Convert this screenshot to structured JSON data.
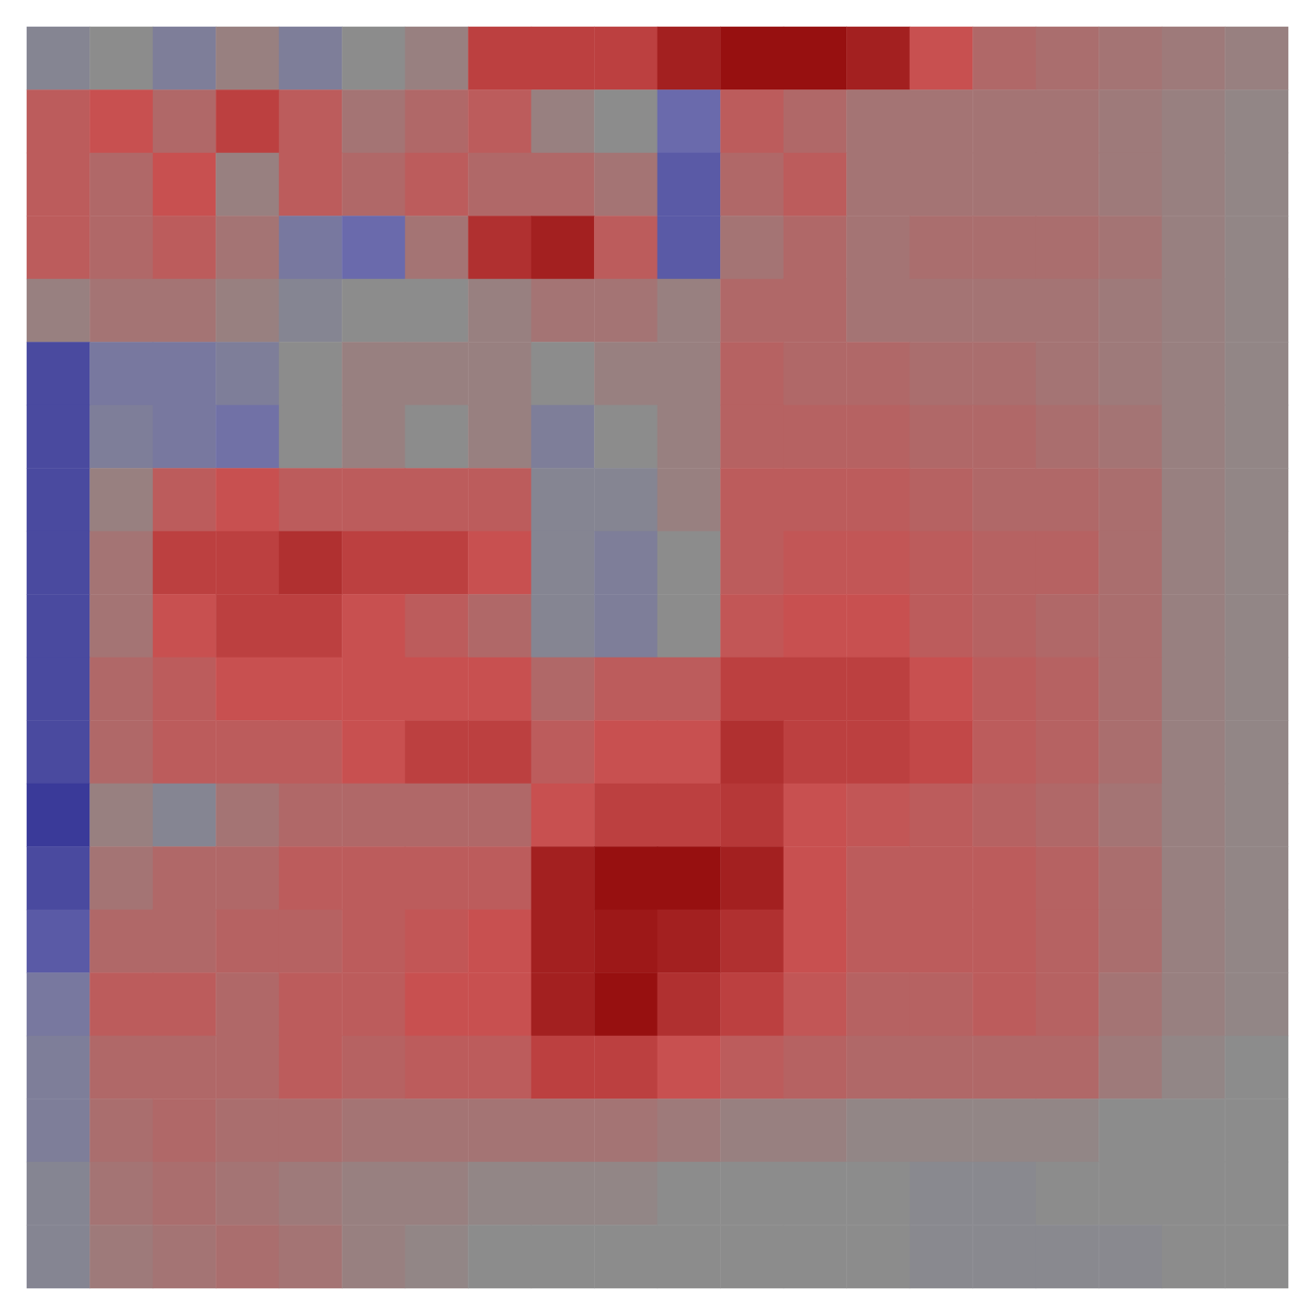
{
  "chart_data": {
    "type": "heatmap",
    "tick_labels": false,
    "grid": false,
    "zlim": [
      -1,
      1
    ],
    "values": [
      [
        -0.1,
        0,
        -0.2,
        0.1,
        -0.2,
        0,
        0.1,
        0.6,
        0.6,
        0.6,
        0.8,
        0.9,
        0.9,
        0.8,
        0.5,
        0.3,
        0.25,
        0.2,
        0.15,
        0.1
      ],
      [
        0.4,
        0.5,
        0.3,
        0.6,
        0.4,
        0.2,
        0.3,
        0.4,
        0.1,
        0,
        -0.5,
        0.4,
        0.3,
        0.2,
        0.2,
        0.2,
        0.2,
        0.15,
        0.1,
        0.05
      ],
      [
        0.4,
        0.3,
        0.5,
        0.1,
        0.4,
        0.3,
        0.4,
        0.3,
        0.3,
        0.2,
        -0.6,
        0.3,
        0.4,
        0.2,
        0.2,
        0.2,
        0.2,
        0.15,
        0.1,
        0.05
      ],
      [
        0.4,
        0.3,
        0.4,
        0.2,
        -0.3,
        -0.5,
        0.2,
        0.7,
        0.8,
        0.4,
        -0.6,
        0.2,
        0.3,
        0.2,
        0.25,
        0.25,
        0.25,
        0.2,
        0.1,
        0.05
      ],
      [
        0.1,
        0.2,
        0.2,
        0.1,
        -0.1,
        0,
        0,
        0.1,
        0.2,
        0.2,
        0.1,
        0.3,
        0.3,
        0.2,
        0.2,
        0.2,
        0.2,
        0.15,
        0.1,
        0.05
      ],
      [
        -0.7,
        -0.3,
        -0.3,
        -0.2,
        0,
        0.1,
        0.1,
        0.1,
        0,
        0.1,
        0.1,
        0.35,
        0.3,
        0.3,
        0.25,
        0.25,
        0.2,
        0.15,
        0.1,
        0.05
      ],
      [
        -0.7,
        -0.2,
        -0.3,
        -0.4,
        0,
        0.1,
        0,
        0.1,
        -0.2,
        0,
        0.1,
        0.35,
        0.35,
        0.35,
        0.3,
        0.3,
        0.25,
        0.2,
        0.1,
        0.05
      ],
      [
        -0.7,
        0.1,
        0.4,
        0.5,
        0.4,
        0.4,
        0.4,
        0.4,
        -0.1,
        -0.1,
        0.1,
        0.4,
        0.4,
        0.4,
        0.35,
        0.3,
        0.3,
        0.25,
        0.1,
        0.05
      ],
      [
        -0.7,
        0.2,
        0.6,
        0.6,
        0.7,
        0.6,
        0.6,
        0.5,
        -0.1,
        -0.2,
        0,
        0.4,
        0.45,
        0.45,
        0.4,
        0.35,
        0.35,
        0.25,
        0.1,
        0.05
      ],
      [
        -0.7,
        0.2,
        0.5,
        0.6,
        0.6,
        0.5,
        0.4,
        0.3,
        -0.1,
        -0.2,
        0,
        0.45,
        0.5,
        0.5,
        0.4,
        0.35,
        0.3,
        0.25,
        0.1,
        0.05
      ],
      [
        -0.7,
        0.3,
        0.4,
        0.5,
        0.5,
        0.5,
        0.5,
        0.5,
        0.3,
        0.4,
        0.4,
        0.6,
        0.6,
        0.6,
        0.5,
        0.4,
        0.35,
        0.25,
        0.1,
        0.05
      ],
      [
        -0.7,
        0.3,
        0.4,
        0.4,
        0.4,
        0.5,
        0.6,
        0.6,
        0.4,
        0.5,
        0.5,
        0.7,
        0.6,
        0.6,
        0.55,
        0.4,
        0.35,
        0.25,
        0.1,
        0.05
      ],
      [
        -0.8,
        0.1,
        -0.1,
        0.2,
        0.3,
        0.3,
        0.3,
        0.3,
        0.5,
        0.6,
        0.6,
        0.65,
        0.5,
        0.45,
        0.4,
        0.35,
        0.3,
        0.2,
        0.1,
        0.05
      ],
      [
        -0.7,
        0.2,
        0.3,
        0.3,
        0.4,
        0.4,
        0.4,
        0.4,
        0.8,
        0.9,
        0.9,
        0.8,
        0.5,
        0.4,
        0.4,
        0.4,
        0.35,
        0.25,
        0.1,
        0.05
      ],
      [
        -0.6,
        0.3,
        0.3,
        0.35,
        0.35,
        0.4,
        0.45,
        0.5,
        0.8,
        0.85,
        0.8,
        0.7,
        0.5,
        0.4,
        0.4,
        0.4,
        0.35,
        0.25,
        0.1,
        0.05
      ],
      [
        -0.3,
        0.4,
        0.4,
        0.3,
        0.4,
        0.4,
        0.5,
        0.5,
        0.8,
        0.9,
        0.7,
        0.6,
        0.45,
        0.35,
        0.35,
        0.4,
        0.35,
        0.2,
        0.1,
        0.05
      ],
      [
        -0.2,
        0.3,
        0.3,
        0.3,
        0.4,
        0.35,
        0.4,
        0.4,
        0.6,
        0.6,
        0.5,
        0.4,
        0.35,
        0.3,
        0.3,
        0.3,
        0.3,
        0.15,
        0.05,
        0
      ],
      [
        -0.2,
        0.25,
        0.3,
        0.25,
        0.25,
        0.2,
        0.2,
        0.2,
        0.2,
        0.2,
        0.15,
        0.1,
        0.1,
        0.05,
        0.05,
        0.05,
        0.05,
        0,
        0,
        0
      ],
      [
        -0.1,
        0.2,
        0.25,
        0.2,
        0.15,
        0.1,
        0.1,
        0.05,
        0.05,
        0.05,
        0,
        0,
        0,
        0,
        -0.05,
        -0.05,
        0,
        0,
        0,
        0
      ],
      [
        -0.1,
        0.15,
        0.2,
        0.25,
        0.2,
        0.1,
        0.05,
        0,
        0,
        0,
        0,
        0,
        0,
        0,
        -0.05,
        -0.05,
        -0.05,
        -0.05,
        0,
        0
      ]
    ]
  }
}
